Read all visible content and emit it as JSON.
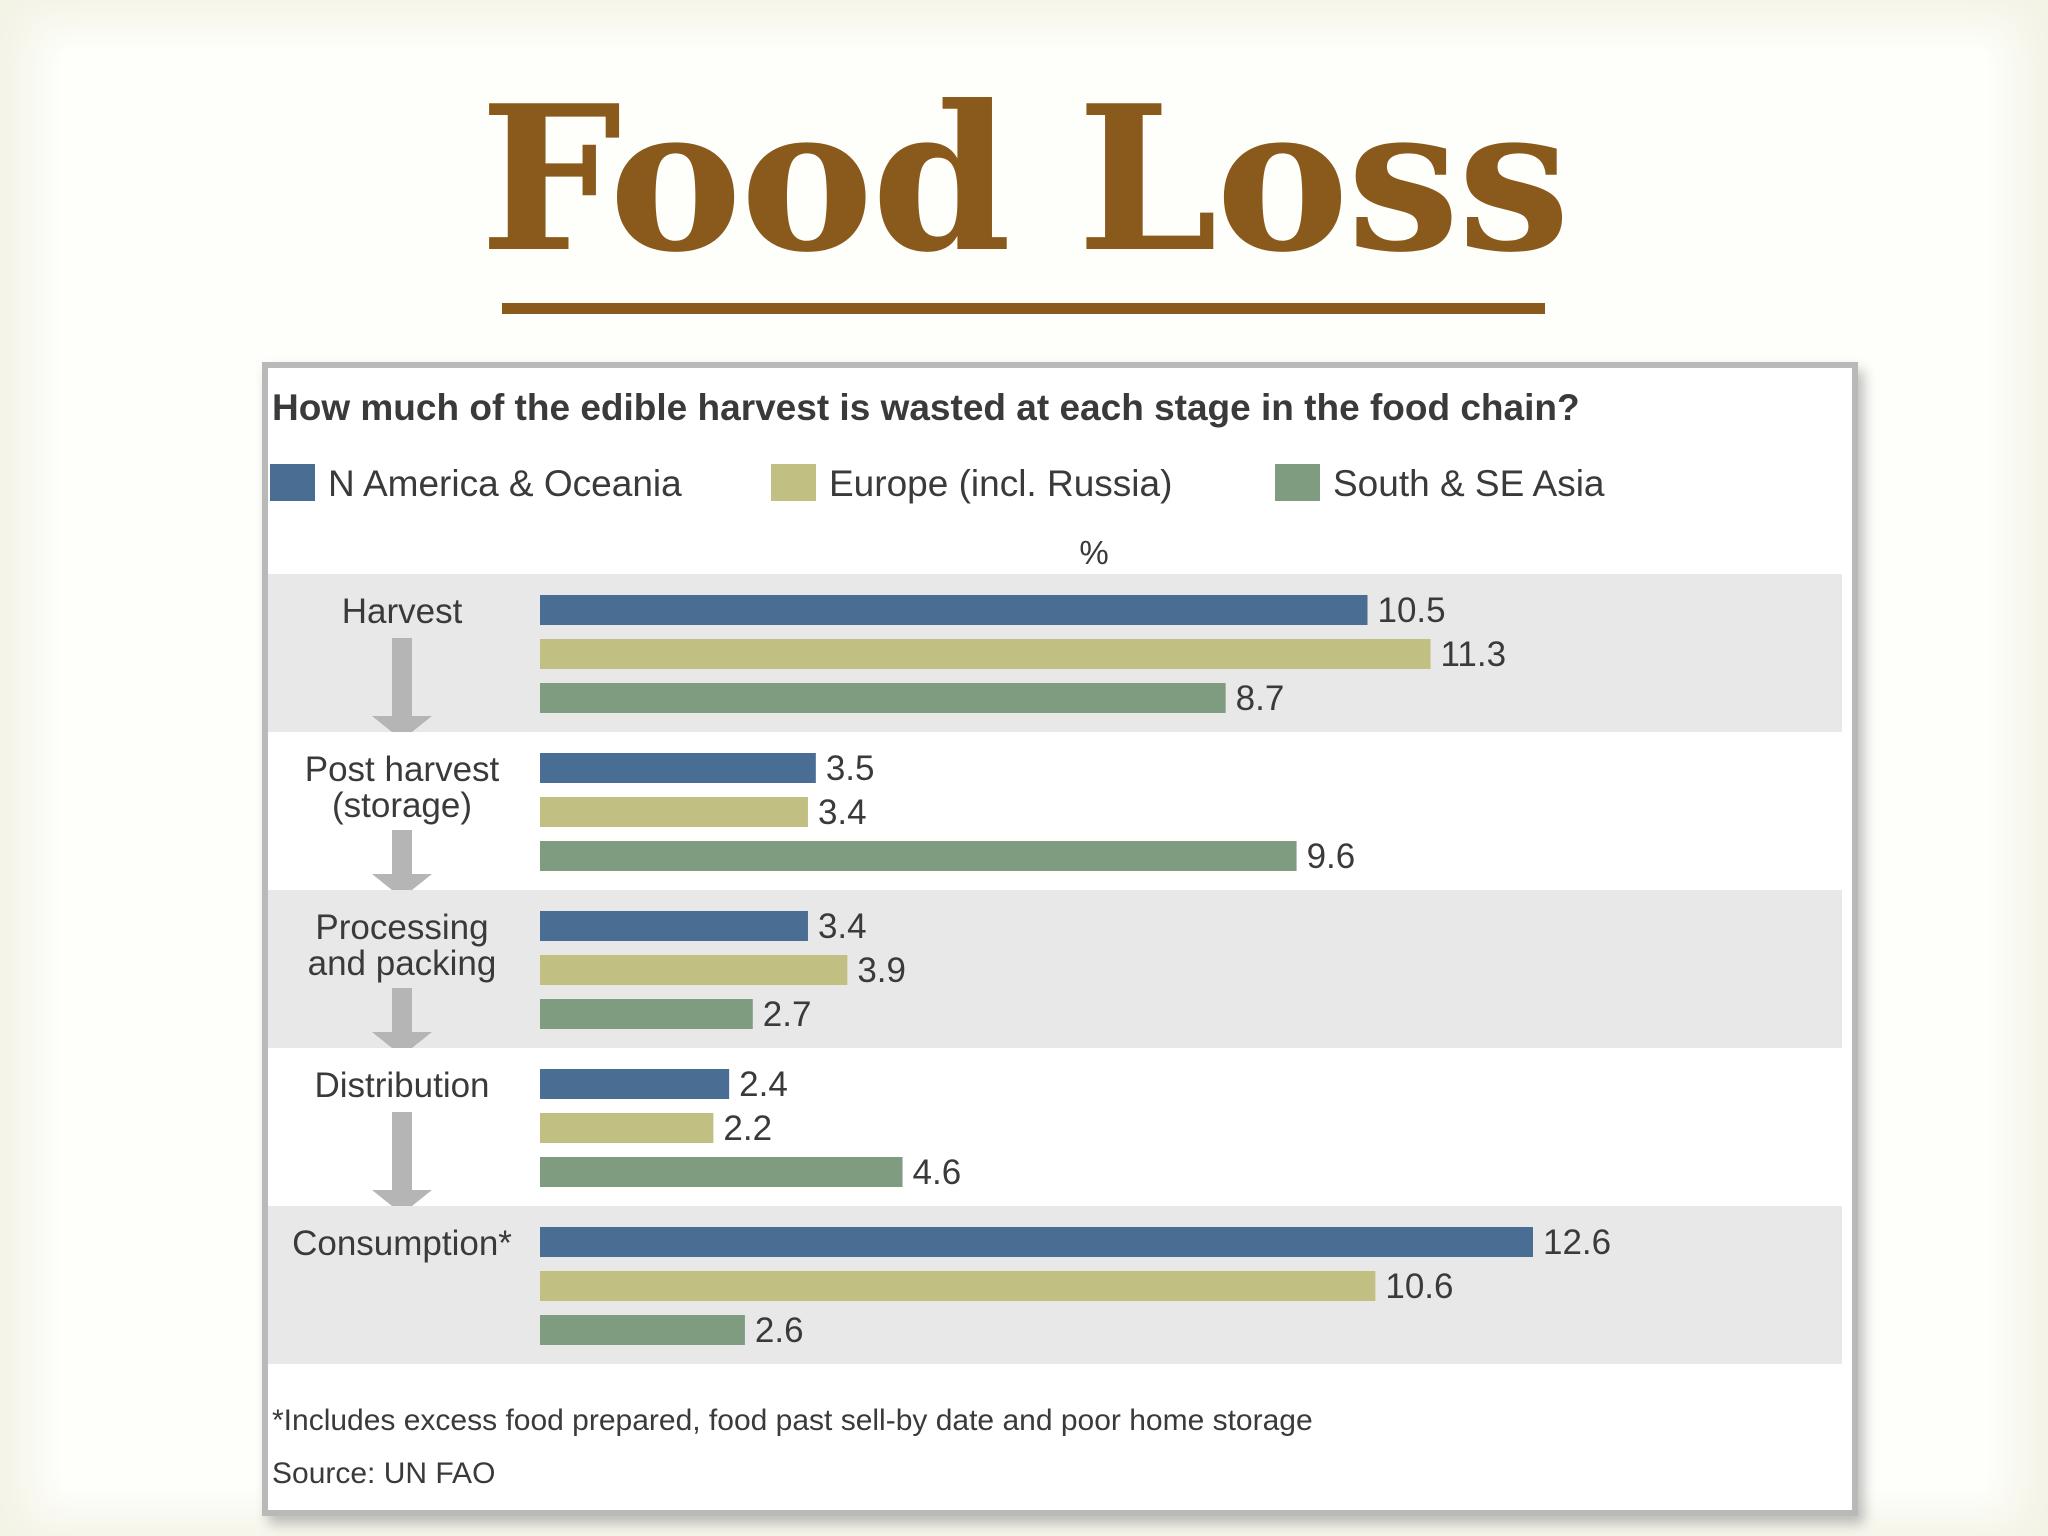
{
  "slide": {
    "title": "Food Loss"
  },
  "chart_data": {
    "type": "bar",
    "orientation": "horizontal",
    "title": "How much of the edible harvest is wasted at each stage in the food chain?",
    "unit": "%",
    "categories": [
      "Harvest",
      "Post harvest (storage)",
      "Processing and packing",
      "Distribution",
      "Consumption*"
    ],
    "category_lines": [
      [
        "Harvest"
      ],
      [
        "Post harvest",
        "(storage)"
      ],
      [
        "Processing",
        "and packing"
      ],
      [
        "Distribution"
      ],
      [
        "Consumption*"
      ]
    ],
    "series": [
      {
        "name": "N America & Oceania",
        "color": "#4a6d93",
        "values": [
          10.5,
          3.5,
          3.4,
          2.4,
          12.6
        ]
      },
      {
        "name": "Europe (incl. Russia)",
        "color": "#c1bf82",
        "values": [
          11.3,
          3.4,
          3.9,
          2.2,
          10.6
        ]
      },
      {
        "name": "South & SE Asia",
        "color": "#7f9c80",
        "values": [
          8.7,
          9.6,
          2.7,
          4.6,
          2.6
        ]
      }
    ],
    "xlim": [
      0,
      13
    ],
    "grid": false,
    "legend_position": "top",
    "band_colors": [
      "#e8e8e8",
      "#ffffff"
    ],
    "notes": [
      "*Includes excess food prepared, food past sell-by date and poor home storage",
      "Source: UN FAO"
    ]
  }
}
